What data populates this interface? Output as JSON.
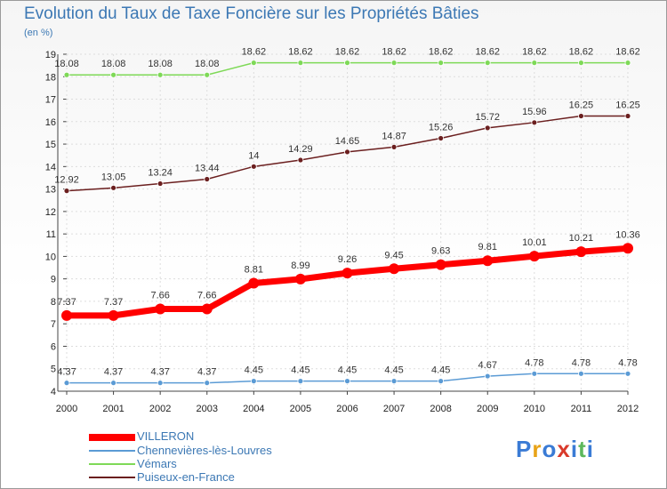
{
  "chart_data": {
    "type": "line",
    "title": "Evolution du Taux de Taxe Foncière sur les Propriétés Bâties",
    "unit_label": "(en %)",
    "x": [
      "2000",
      "2001",
      "2002",
      "2003",
      "2004",
      "2005",
      "2006",
      "2007",
      "2008",
      "2009",
      "2010",
      "2011",
      "2012"
    ],
    "ylim": [
      4,
      19
    ],
    "yticks": [
      4,
      5,
      6,
      7,
      8,
      9,
      10,
      11,
      12,
      13,
      14,
      15,
      16,
      17,
      18,
      19
    ],
    "grid": true,
    "series": [
      {
        "name": "VILLERON",
        "color": "#ff0000",
        "values": [
          7.37,
          7.37,
          7.66,
          7.66,
          8.81,
          8.99,
          9.26,
          9.45,
          9.63,
          9.81,
          10.01,
          10.21,
          10.36
        ],
        "labels": [
          "7.37",
          "7.37",
          "7.66",
          "7.66",
          "8.81",
          "8.99",
          "9.26",
          "9.45",
          "9.63",
          "9.81",
          "10.01",
          "10.21",
          "10.36"
        ]
      },
      {
        "name": "Chennevières-lès-Louvres",
        "color": "#5b9bd5",
        "values": [
          4.37,
          4.37,
          4.37,
          4.37,
          4.45,
          4.45,
          4.45,
          4.45,
          4.45,
          4.67,
          4.78,
          4.78,
          4.78
        ],
        "labels": [
          "4.37",
          "4.37",
          "4.37",
          "4.37",
          "4.45",
          "4.45",
          "4.45",
          "4.45",
          "4.45",
          "4.67",
          "4.78",
          "4.78",
          "4.78"
        ]
      },
      {
        "name": "Vémars",
        "color": "#7ed957",
        "values": [
          18.08,
          18.08,
          18.08,
          18.08,
          18.62,
          18.62,
          18.62,
          18.62,
          18.62,
          18.62,
          18.62,
          18.62,
          18.62
        ],
        "labels": [
          "18.08",
          "18.08",
          "18.08",
          "18.08",
          "18.62",
          "18.62",
          "18.62",
          "18.62",
          "18.62",
          "18.62",
          "18.62",
          "18.62",
          "18.62"
        ]
      },
      {
        "name": "Puiseux-en-France",
        "color": "#6b1f1f",
        "values": [
          12.92,
          13.05,
          13.24,
          13.44,
          14,
          14.29,
          14.65,
          14.87,
          15.26,
          15.72,
          15.96,
          16.25,
          16.25
        ],
        "labels": [
          "12.92",
          "13.05",
          "13.24",
          "13.44",
          "14",
          "14.29",
          "14.65",
          "14.87",
          "15.26",
          "15.72",
          "15.96",
          "16.25",
          "16.25"
        ]
      }
    ]
  },
  "brand": {
    "letters": [
      "P",
      "r",
      "o",
      "x",
      "i",
      "t",
      "i"
    ],
    "colors": [
      "#3a7bd5",
      "#e8a317",
      "#3a7bd5",
      "#d93a2b",
      "#3a7bd5",
      "#5cb85c",
      "#3a7bd5"
    ]
  }
}
